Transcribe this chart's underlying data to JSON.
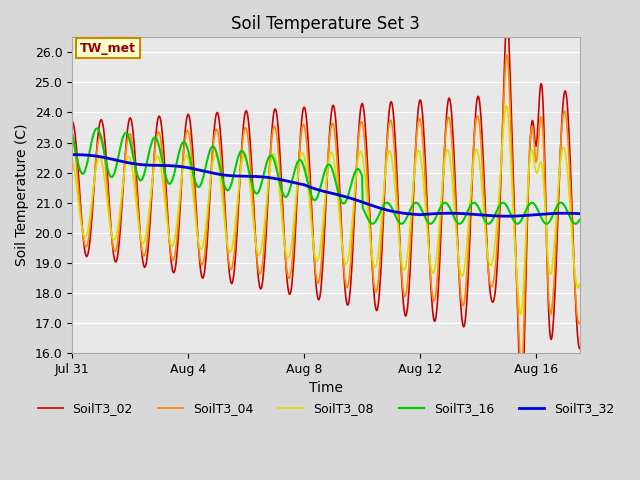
{
  "title": "Soil Temperature Set 3",
  "xlabel": "Time",
  "ylabel": "Soil Temperature (C)",
  "ylim": [
    16.0,
    26.5
  ],
  "yticks": [
    16.0,
    17.0,
    18.0,
    19.0,
    20.0,
    21.0,
    22.0,
    23.0,
    24.0,
    25.0,
    26.0
  ],
  "xtick_positions": [
    0,
    4,
    8,
    12,
    16
  ],
  "xtick_labels": [
    "Jul 31",
    "Aug 4",
    "Aug 8",
    "Aug 12",
    "Aug 16"
  ],
  "series_colors": [
    "#cc0000",
    "#ff8800",
    "#dddd00",
    "#00cc00",
    "#0000dd"
  ],
  "series_names": [
    "SoilT3_02",
    "SoilT3_04",
    "SoilT3_08",
    "SoilT3_16",
    "SoilT3_32"
  ],
  "series_linewidths": [
    1.2,
    1.2,
    1.2,
    1.5,
    2.0
  ],
  "annotation_text": "TW_met",
  "bg_color": "#e8e8e8",
  "grid_color": "#ffffff",
  "title_fontsize": 12,
  "axis_label_fontsize": 10,
  "tick_fontsize": 9,
  "fig_bg": "#d8d8d8"
}
